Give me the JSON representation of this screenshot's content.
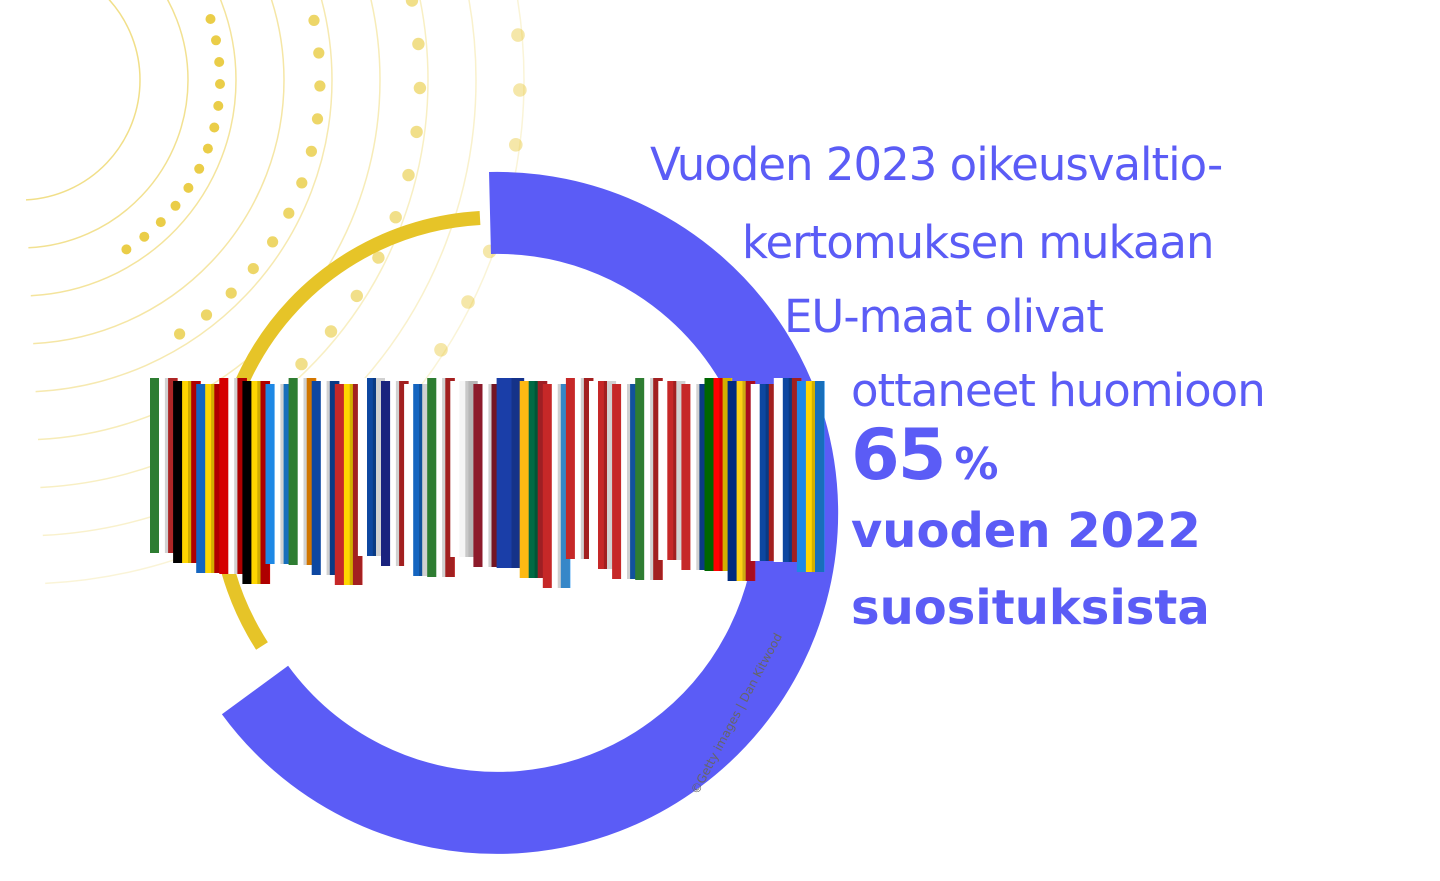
{
  "headline": {
    "line1": "Vuoden 2023 oikeusvaltio-",
    "line2": "kertomuksen mukaan",
    "line3": "EU-maat olivat",
    "line4": "ottaneet huomioon",
    "percent_value": "65",
    "percent_sign": "%",
    "line5": "vuoden 2022",
    "line6": "suosituksista"
  },
  "percentage": 65,
  "credit": "©Getty images | Dan Kitwood",
  "colors": {
    "accent": "#5b5cf6",
    "gold": "#e6c428"
  },
  "icons": [
    "eu-flags-image",
    "donut-ring",
    "sunburst-decoration"
  ]
}
